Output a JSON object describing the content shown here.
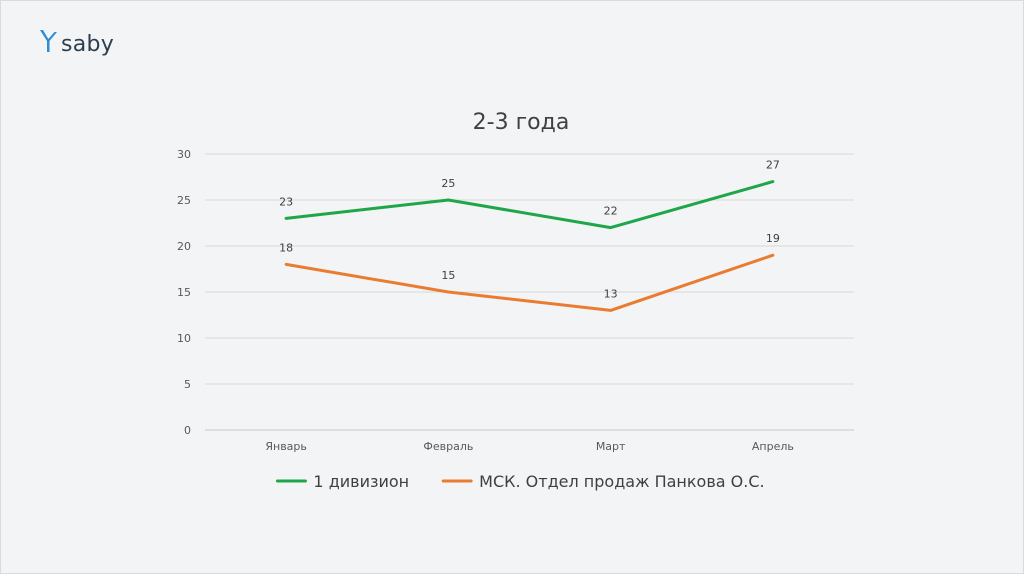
{
  "logo": {
    "text": "saby",
    "icon": "saby-bird-icon",
    "icon_color": "#2b8cd9"
  },
  "chart_data": {
    "type": "line",
    "title": "2-3 года",
    "xlabel": "",
    "ylabel": "",
    "categories": [
      "Январь",
      "Февраль",
      "Март",
      "Апрель"
    ],
    "ylim": [
      0,
      30
    ],
    "yticks": [
      0,
      5,
      10,
      15,
      20,
      25,
      30
    ],
    "grid": true,
    "legend_position": "bottom",
    "data_labels": true,
    "series": [
      {
        "name": "1 дивизион",
        "values": [
          23,
          25,
          22,
          27
        ],
        "color": "#1fa64a"
      },
      {
        "name": "МСК. Отдел продаж Панкова О.С.",
        "values": [
          18,
          15,
          13,
          19
        ],
        "color": "#ea7c32"
      }
    ]
  }
}
